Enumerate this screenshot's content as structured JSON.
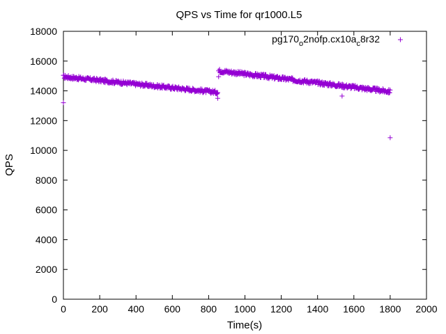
{
  "chart_data": {
    "type": "scatter",
    "title": "QPS vs Time for qr1000.L5",
    "xlabel": "Time(s)",
    "ylabel": "QPS",
    "xlim": [
      0,
      2000
    ],
    "ylim": [
      0,
      18000
    ],
    "xticks": [
      0,
      200,
      400,
      600,
      800,
      1000,
      1200,
      1400,
      1600,
      1800,
      2000
    ],
    "yticks": [
      0,
      2000,
      4000,
      6000,
      8000,
      10000,
      12000,
      14000,
      16000,
      18000
    ],
    "grid": false,
    "legend_position": "top-right",
    "marker": "+",
    "color": "#9400d3",
    "legend": {
      "parts": [
        {
          "text": "pg170",
          "sub": false
        },
        {
          "text": "o",
          "sub": true
        },
        {
          "text": "2nofp.cx10a",
          "sub": false
        },
        {
          "text": "c",
          "sub": true
        },
        {
          "text": "8r32",
          "sub": false
        }
      ]
    },
    "series": [
      {
        "name": "pg170_o2nofp.cx10a_c8r32",
        "segments": [
          {
            "x_start": 0,
            "x_end": 850,
            "y_start": 14950,
            "y_end": 13900,
            "spread": 120
          },
          {
            "x_start": 855,
            "x_end": 1800,
            "y_start": 15350,
            "y_end": 13950,
            "spread": 130
          }
        ],
        "outliers": [
          {
            "x": 0,
            "y": 13200
          },
          {
            "x": 850,
            "y": 13500
          },
          {
            "x": 855,
            "y": 14950
          },
          {
            "x": 1535,
            "y": 13650
          },
          {
            "x": 1800,
            "y": 10850
          }
        ]
      }
    ]
  }
}
